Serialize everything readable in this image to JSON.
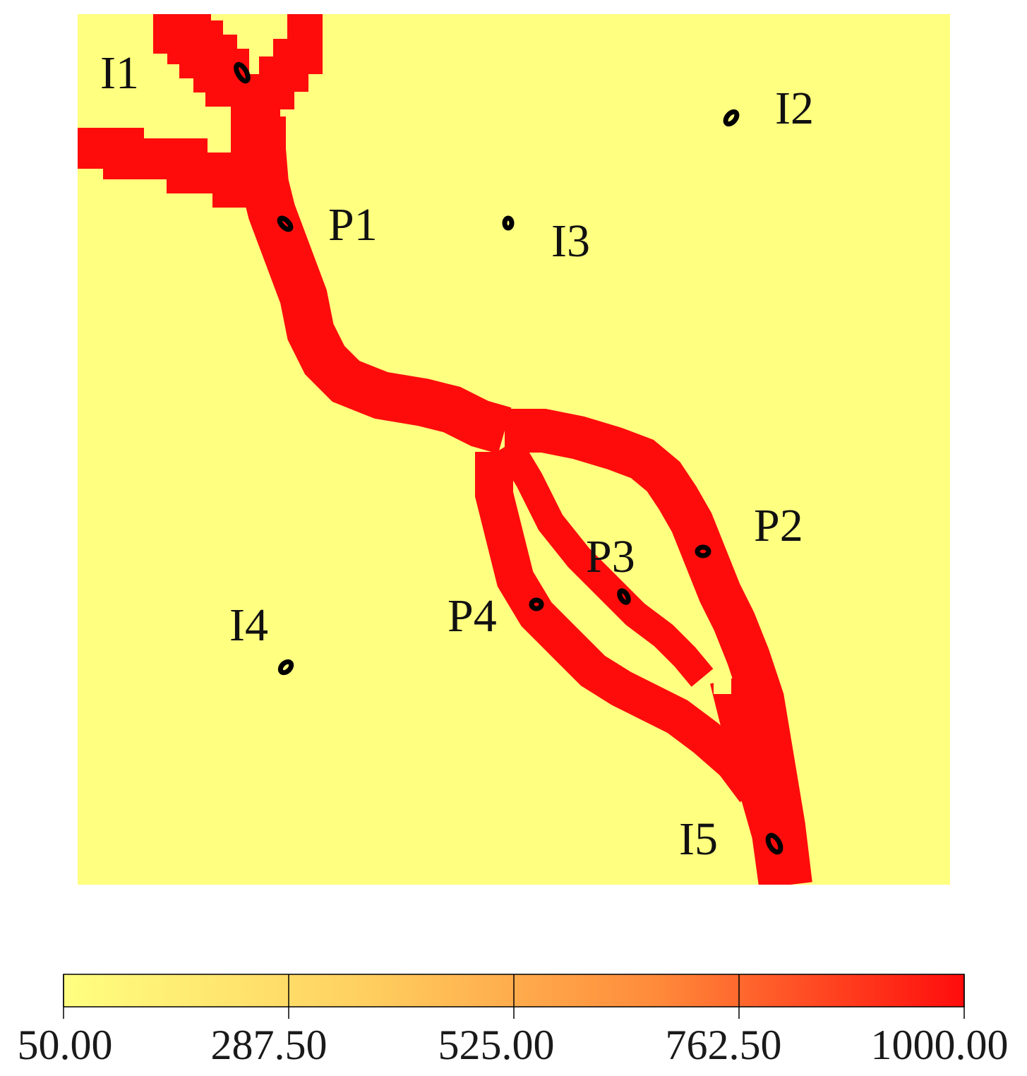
{
  "map": {
    "background_color": "#ffff80",
    "channel_color": "#fe0c0c",
    "marker_color": "#000000"
  },
  "wells": [
    {
      "id": "I1",
      "label": "I1",
      "type": "injector"
    },
    {
      "id": "I2",
      "label": "I2",
      "type": "injector"
    },
    {
      "id": "I3",
      "label": "I3",
      "type": "injector"
    },
    {
      "id": "I4",
      "label": "I4",
      "type": "injector"
    },
    {
      "id": "I5",
      "label": "I5",
      "type": "injector"
    },
    {
      "id": "P1",
      "label": "P1",
      "type": "producer"
    },
    {
      "id": "P2",
      "label": "P2",
      "type": "producer"
    },
    {
      "id": "P3",
      "label": "P3",
      "type": "producer"
    },
    {
      "id": "P4",
      "label": "P4",
      "type": "producer"
    }
  ],
  "colorbar": {
    "min": 50.0,
    "max": 1000.0,
    "ticks": [
      "50.00",
      "287.50",
      "525.00",
      "762.50",
      "1000.00"
    ],
    "colors": [
      "#ffff80",
      "#ff0c0c"
    ]
  }
}
